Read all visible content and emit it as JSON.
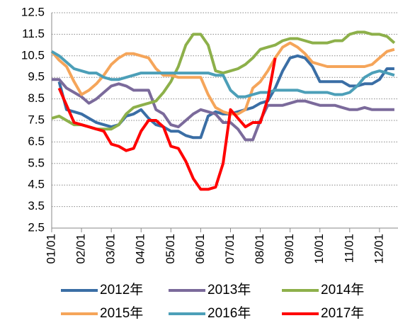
{
  "chart_data": {
    "type": "line",
    "categories": [
      "01/01",
      null,
      null,
      null,
      "02/01",
      null,
      null,
      null,
      "03/01",
      null,
      null,
      null,
      "04/01",
      null,
      null,
      null,
      "05/01",
      null,
      null,
      null,
      "06/01",
      null,
      null,
      null,
      "07/01",
      null,
      null,
      null,
      "08/01",
      null,
      null,
      null,
      "09/01",
      null,
      null,
      null,
      "10/01",
      null,
      null,
      null,
      "11/01",
      null,
      null,
      null,
      "12/01",
      null,
      null
    ],
    "series": [
      {
        "name": "2012年",
        "color": "#3a6ea5",
        "values": [
          null,
          9.3,
          8.0,
          7.9,
          7.8,
          7.6,
          7.4,
          7.3,
          7.2,
          7.3,
          7.7,
          7.8,
          8.0,
          7.6,
          7.3,
          7.2,
          7.0,
          7.0,
          6.8,
          6.7,
          6.7,
          7.7,
          7.9,
          7.8,
          7.8,
          7.9,
          8.0,
          8.1,
          8.3,
          8.4,
          9.0,
          9.8,
          10.4,
          10.5,
          10.4,
          10.0,
          9.3,
          9.3,
          9.3,
          9.3,
          9.1,
          9.1,
          9.2,
          9.2,
          9.4,
          9.9,
          9.9
        ]
      },
      {
        "name": "2013年",
        "color": "#7b6a9b",
        "values": [
          9.4,
          9.4,
          9.0,
          8.8,
          8.6,
          8.3,
          8.5,
          8.8,
          9.1,
          9.2,
          9.1,
          8.9,
          8.9,
          8.9,
          8.0,
          7.8,
          7.3,
          7.2,
          7.5,
          7.8,
          8.0,
          7.9,
          7.8,
          7.4,
          7.4,
          7.1,
          6.6,
          6.6,
          7.5,
          8.2,
          8.2,
          8.2,
          8.3,
          8.4,
          8.4,
          8.3,
          8.2,
          8.2,
          8.2,
          8.1,
          8.0,
          8.0,
          8.1,
          8.0,
          8.0,
          8.0,
          8.0
        ]
      },
      {
        "name": "2014年",
        "color": "#8db04a",
        "values": [
          7.6,
          7.7,
          7.5,
          7.3,
          7.3,
          7.2,
          7.1,
          7.1,
          7.1,
          7.3,
          7.8,
          8.1,
          8.2,
          8.3,
          8.4,
          8.8,
          9.3,
          10.0,
          11.0,
          11.5,
          11.5,
          11.0,
          9.8,
          9.7,
          9.8,
          9.9,
          10.1,
          10.4,
          10.8,
          10.9,
          11.0,
          11.2,
          11.3,
          11.3,
          11.2,
          11.1,
          11.1,
          11.1,
          11.2,
          11.2,
          11.5,
          11.6,
          11.6,
          11.5,
          11.5,
          11.4,
          11.1
        ]
      },
      {
        "name": "2015年",
        "color": "#f5a55a",
        "values": [
          10.7,
          10.3,
          10.0,
          9.3,
          8.7,
          8.9,
          9.2,
          9.6,
          10.1,
          10.4,
          10.6,
          10.6,
          10.5,
          10.4,
          9.9,
          9.6,
          9.6,
          9.5,
          9.5,
          9.5,
          9.5,
          8.7,
          8.1,
          7.9,
          7.8,
          7.8,
          8.0,
          9.0,
          9.3,
          9.8,
          10.4,
          10.9,
          11.1,
          10.9,
          10.6,
          10.2,
          10.1,
          10.0,
          10.0,
          10.0,
          10.0,
          10.0,
          10.0,
          10.1,
          10.4,
          10.7,
          10.8
        ]
      },
      {
        "name": "2016年",
        "color": "#4c9fb8",
        "values": [
          10.7,
          10.5,
          10.2,
          9.9,
          9.8,
          9.7,
          9.7,
          9.5,
          9.4,
          9.4,
          9.5,
          9.6,
          9.7,
          9.7,
          9.7,
          9.7,
          9.7,
          9.7,
          9.7,
          9.7,
          9.7,
          9.7,
          9.6,
          9.6,
          8.9,
          8.6,
          8.6,
          8.7,
          8.8,
          8.8,
          8.9,
          8.9,
          8.9,
          8.9,
          8.8,
          8.8,
          8.8,
          8.8,
          8.7,
          8.7,
          8.8,
          9.1,
          9.5,
          9.7,
          9.8,
          9.7,
          9.6
        ]
      },
      {
        "name": "2017年",
        "color": "#ff0000",
        "values": [
          null,
          9.0,
          8.2,
          7.4,
          7.3,
          7.2,
          7.1,
          7.0,
          6.4,
          6.3,
          6.1,
          6.2,
          7.0,
          7.5,
          7.5,
          7.2,
          6.3,
          6.2,
          5.6,
          4.8,
          4.3,
          4.3,
          4.4,
          5.5,
          8.0,
          7.6,
          7.2,
          7.4,
          7.4,
          8.5,
          10.4,
          null,
          null,
          null,
          null,
          null,
          null,
          null,
          null,
          null,
          null,
          null,
          null,
          null,
          null,
          null,
          null
        ]
      }
    ],
    "ylim": [
      2.5,
      12.5
    ],
    "yticks": [
      2.5,
      3.5,
      4.5,
      5.5,
      6.5,
      7.5,
      8.5,
      9.5,
      10.5,
      11.5,
      12.5
    ],
    "grid": true
  }
}
